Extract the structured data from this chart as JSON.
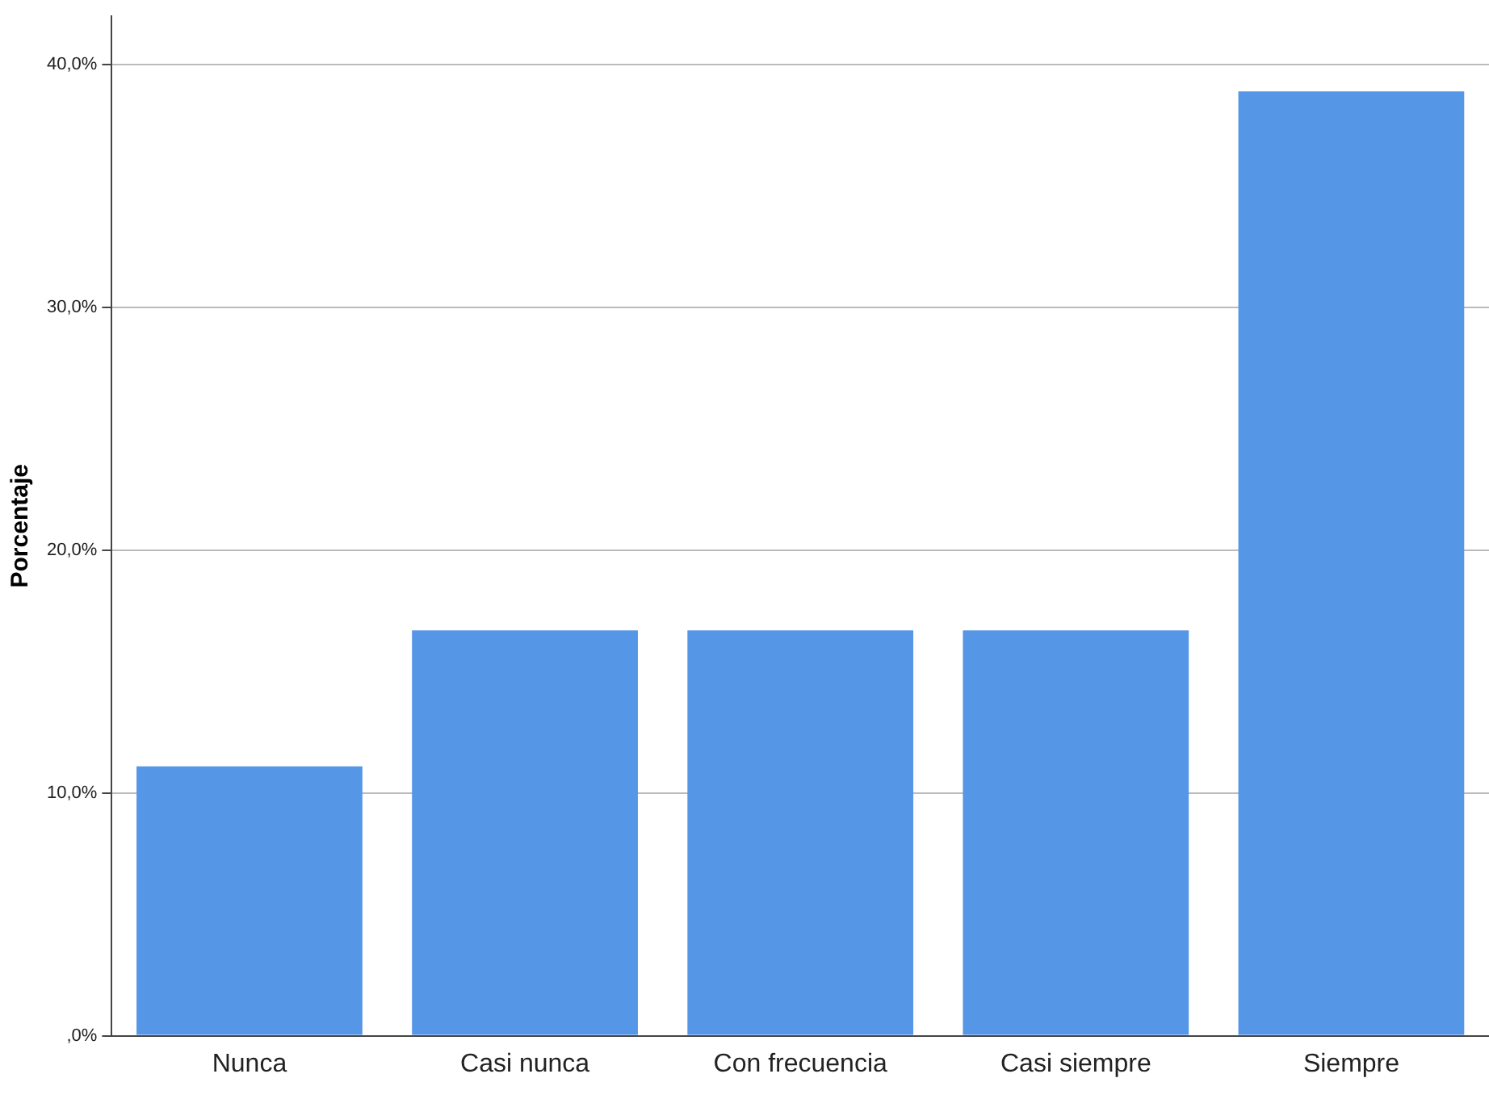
{
  "chart_data": {
    "type": "bar",
    "ylabel": "Porcentaje",
    "categories": [
      "Nunca",
      "Casi nunca",
      "Con frecuencia",
      "Casi siempre",
      "Siempre"
    ],
    "values": [
      11.1,
      16.7,
      16.7,
      16.7,
      38.9
    ],
    "color": "#5596e6",
    "ylim": [
      0,
      42
    ],
    "yticks": [
      {
        "value": 0,
        "label": ",0%"
      },
      {
        "value": 10,
        "label": "10,0%"
      },
      {
        "value": 20,
        "label": "20,0%"
      },
      {
        "value": 30,
        "label": "30,0%"
      },
      {
        "value": 40,
        "label": "40,0%"
      }
    ],
    "grid": "y",
    "legend": false
  }
}
